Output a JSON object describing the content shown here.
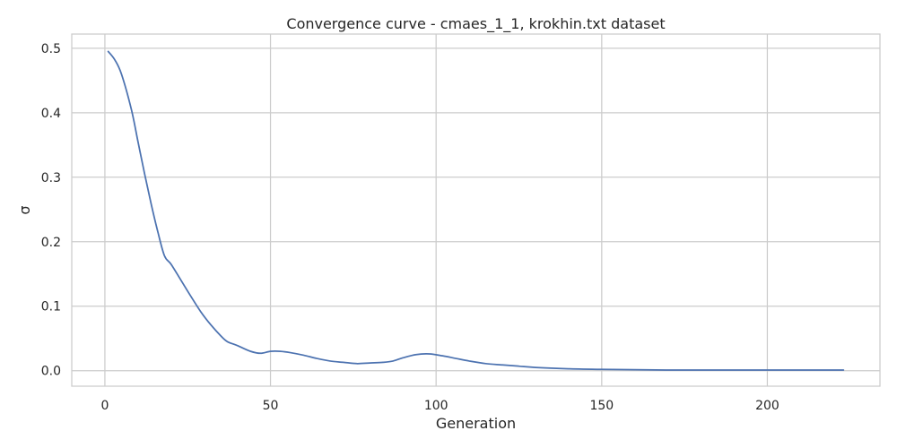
{
  "chart_data": {
    "type": "line",
    "title": "Convergence curve - cmaes_1_1, krokhin.txt dataset",
    "xlabel": "Generation",
    "ylabel": "σ",
    "xlim": [
      -10,
      234
    ],
    "ylim": [
      -0.024,
      0.522
    ],
    "xticks": [
      0,
      50,
      100,
      150,
      200
    ],
    "yticks": [
      0.0,
      0.1,
      0.2,
      0.3,
      0.4,
      0.5
    ],
    "xtick_labels": [
      "0",
      "50",
      "100",
      "150",
      "200"
    ],
    "ytick_labels": [
      "0.0",
      "0.1",
      "0.2",
      "0.3",
      "0.4",
      "0.5"
    ],
    "grid": true,
    "line_color": "#4c72b0",
    "grid_color": "#cccccc",
    "series": [
      {
        "x": [
          1,
          3,
          5,
          8,
          10,
          12,
          14,
          16,
          18,
          20,
          23,
          26,
          29,
          32,
          35,
          37,
          40,
          44,
          47,
          50,
          53,
          56,
          60,
          64,
          68,
          72,
          76,
          80,
          84,
          87,
          90,
          94,
          98,
          102,
          106,
          110,
          115,
          120,
          125,
          130,
          140,
          150,
          160,
          170,
          180,
          190,
          200,
          210,
          223
        ],
        "y": [
          0.495,
          0.482,
          0.46,
          0.405,
          0.355,
          0.305,
          0.258,
          0.215,
          0.178,
          0.165,
          0.14,
          0.115,
          0.091,
          0.071,
          0.054,
          0.045,
          0.039,
          0.03,
          0.027,
          0.03,
          0.03,
          0.028,
          0.024,
          0.019,
          0.015,
          0.013,
          0.011,
          0.012,
          0.013,
          0.015,
          0.02,
          0.025,
          0.026,
          0.023,
          0.019,
          0.015,
          0.011,
          0.009,
          0.007,
          0.005,
          0.003,
          0.002,
          0.0015,
          0.001,
          0.001,
          0.001,
          0.001,
          0.001,
          0.001
        ]
      }
    ]
  }
}
